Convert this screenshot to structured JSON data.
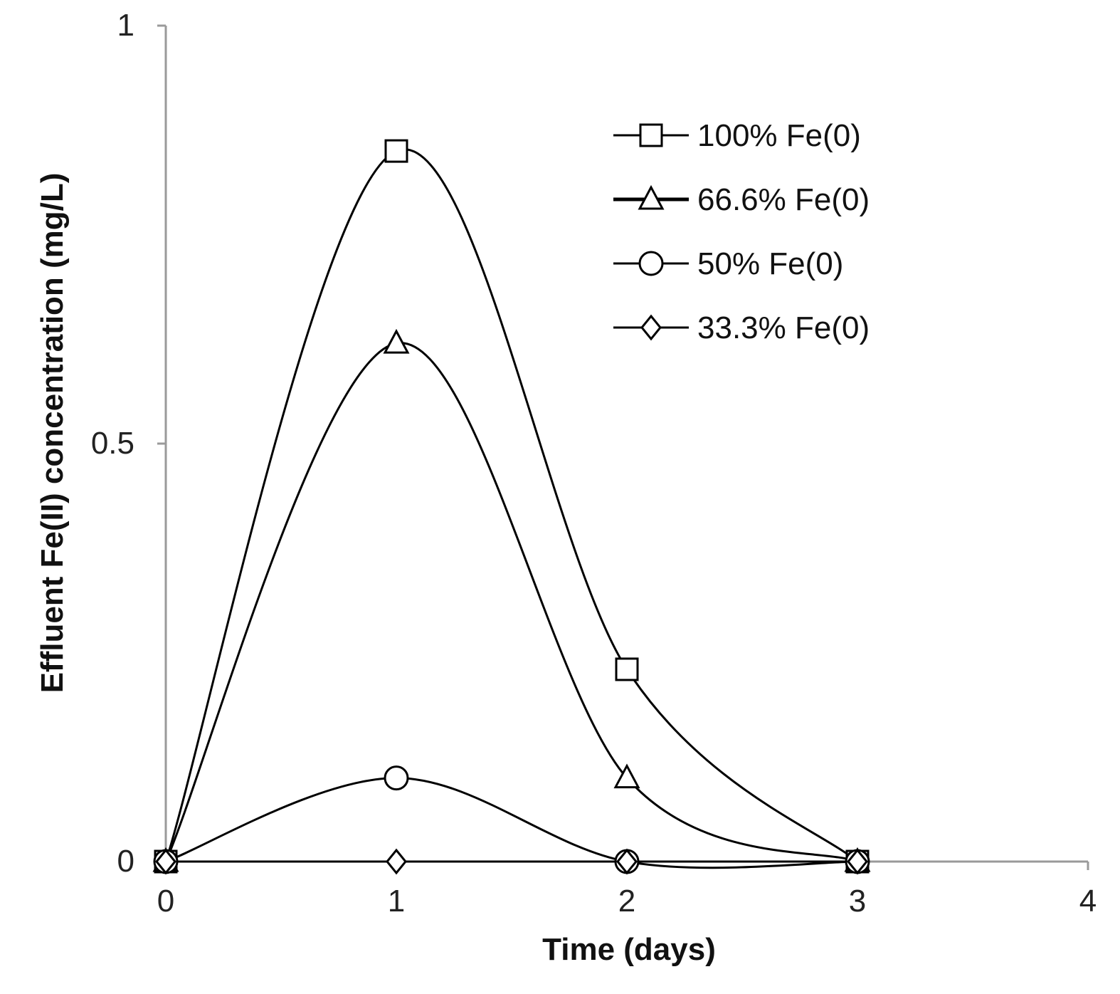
{
  "chart_data": {
    "type": "line",
    "title": "",
    "xlabel": "Time (days)",
    "ylabel": "Effluent Fe(II) concentration (mg/L)",
    "xlim": [
      0,
      4
    ],
    "ylim": [
      0,
      1
    ],
    "xticks": [
      "0",
      "1",
      "2",
      "3",
      "4"
    ],
    "yticks": [
      "0",
      "0.5",
      "1"
    ],
    "grid": false,
    "legend_position": "top-right",
    "x": [
      0,
      1,
      2,
      3
    ],
    "series": [
      {
        "name": "100% Fe(0)",
        "marker": "square",
        "values": [
          0,
          0.85,
          0.23,
          0
        ]
      },
      {
        "name": "66.6% Fe(0)",
        "marker": "triangle",
        "values": [
          0,
          0.62,
          0.1,
          0
        ]
      },
      {
        "name": "50% Fe(0)",
        "marker": "circle",
        "values": [
          0,
          0.1,
          0,
          0
        ]
      },
      {
        "name": "33.3% Fe(0)",
        "marker": "diamond",
        "values": [
          0,
          0,
          0,
          0
        ]
      }
    ],
    "colors": {
      "line": "#000000",
      "axis": "#9a9a9a",
      "marker_fill": "#ffffff"
    }
  }
}
